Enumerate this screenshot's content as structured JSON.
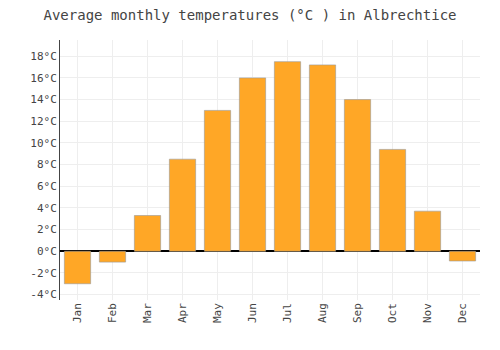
{
  "chart_data": {
    "type": "bar",
    "title": "Average monthly temperatures (°C ) in Albrechtice",
    "categories": [
      "Jan",
      "Feb",
      "Mar",
      "Apr",
      "May",
      "Jun",
      "Jul",
      "Aug",
      "Sep",
      "Oct",
      "Nov",
      "Dec"
    ],
    "values": [
      -3.0,
      -1.0,
      3.3,
      8.5,
      13.0,
      16.0,
      17.5,
      17.2,
      14.0,
      9.4,
      3.7,
      -0.9
    ],
    "color": "#FFA726",
    "ylim": [
      -4.5,
      19.5
    ],
    "yticks": [
      {
        "value": -4,
        "label": "-4°C"
      },
      {
        "value": -2,
        "label": "-2°C"
      },
      {
        "value": 0,
        "label": "0°C"
      },
      {
        "value": 2,
        "label": "2°C"
      },
      {
        "value": 4,
        "label": "4°C"
      },
      {
        "value": 6,
        "label": "6°C"
      },
      {
        "value": 8,
        "label": "8°C"
      },
      {
        "value": 10,
        "label": "10°C"
      },
      {
        "value": 12,
        "label": "12°C"
      },
      {
        "value": 14,
        "label": "14°C"
      },
      {
        "value": 16,
        "label": "16°C"
      },
      {
        "value": 18,
        "label": "18°C"
      }
    ],
    "grid": true
  }
}
